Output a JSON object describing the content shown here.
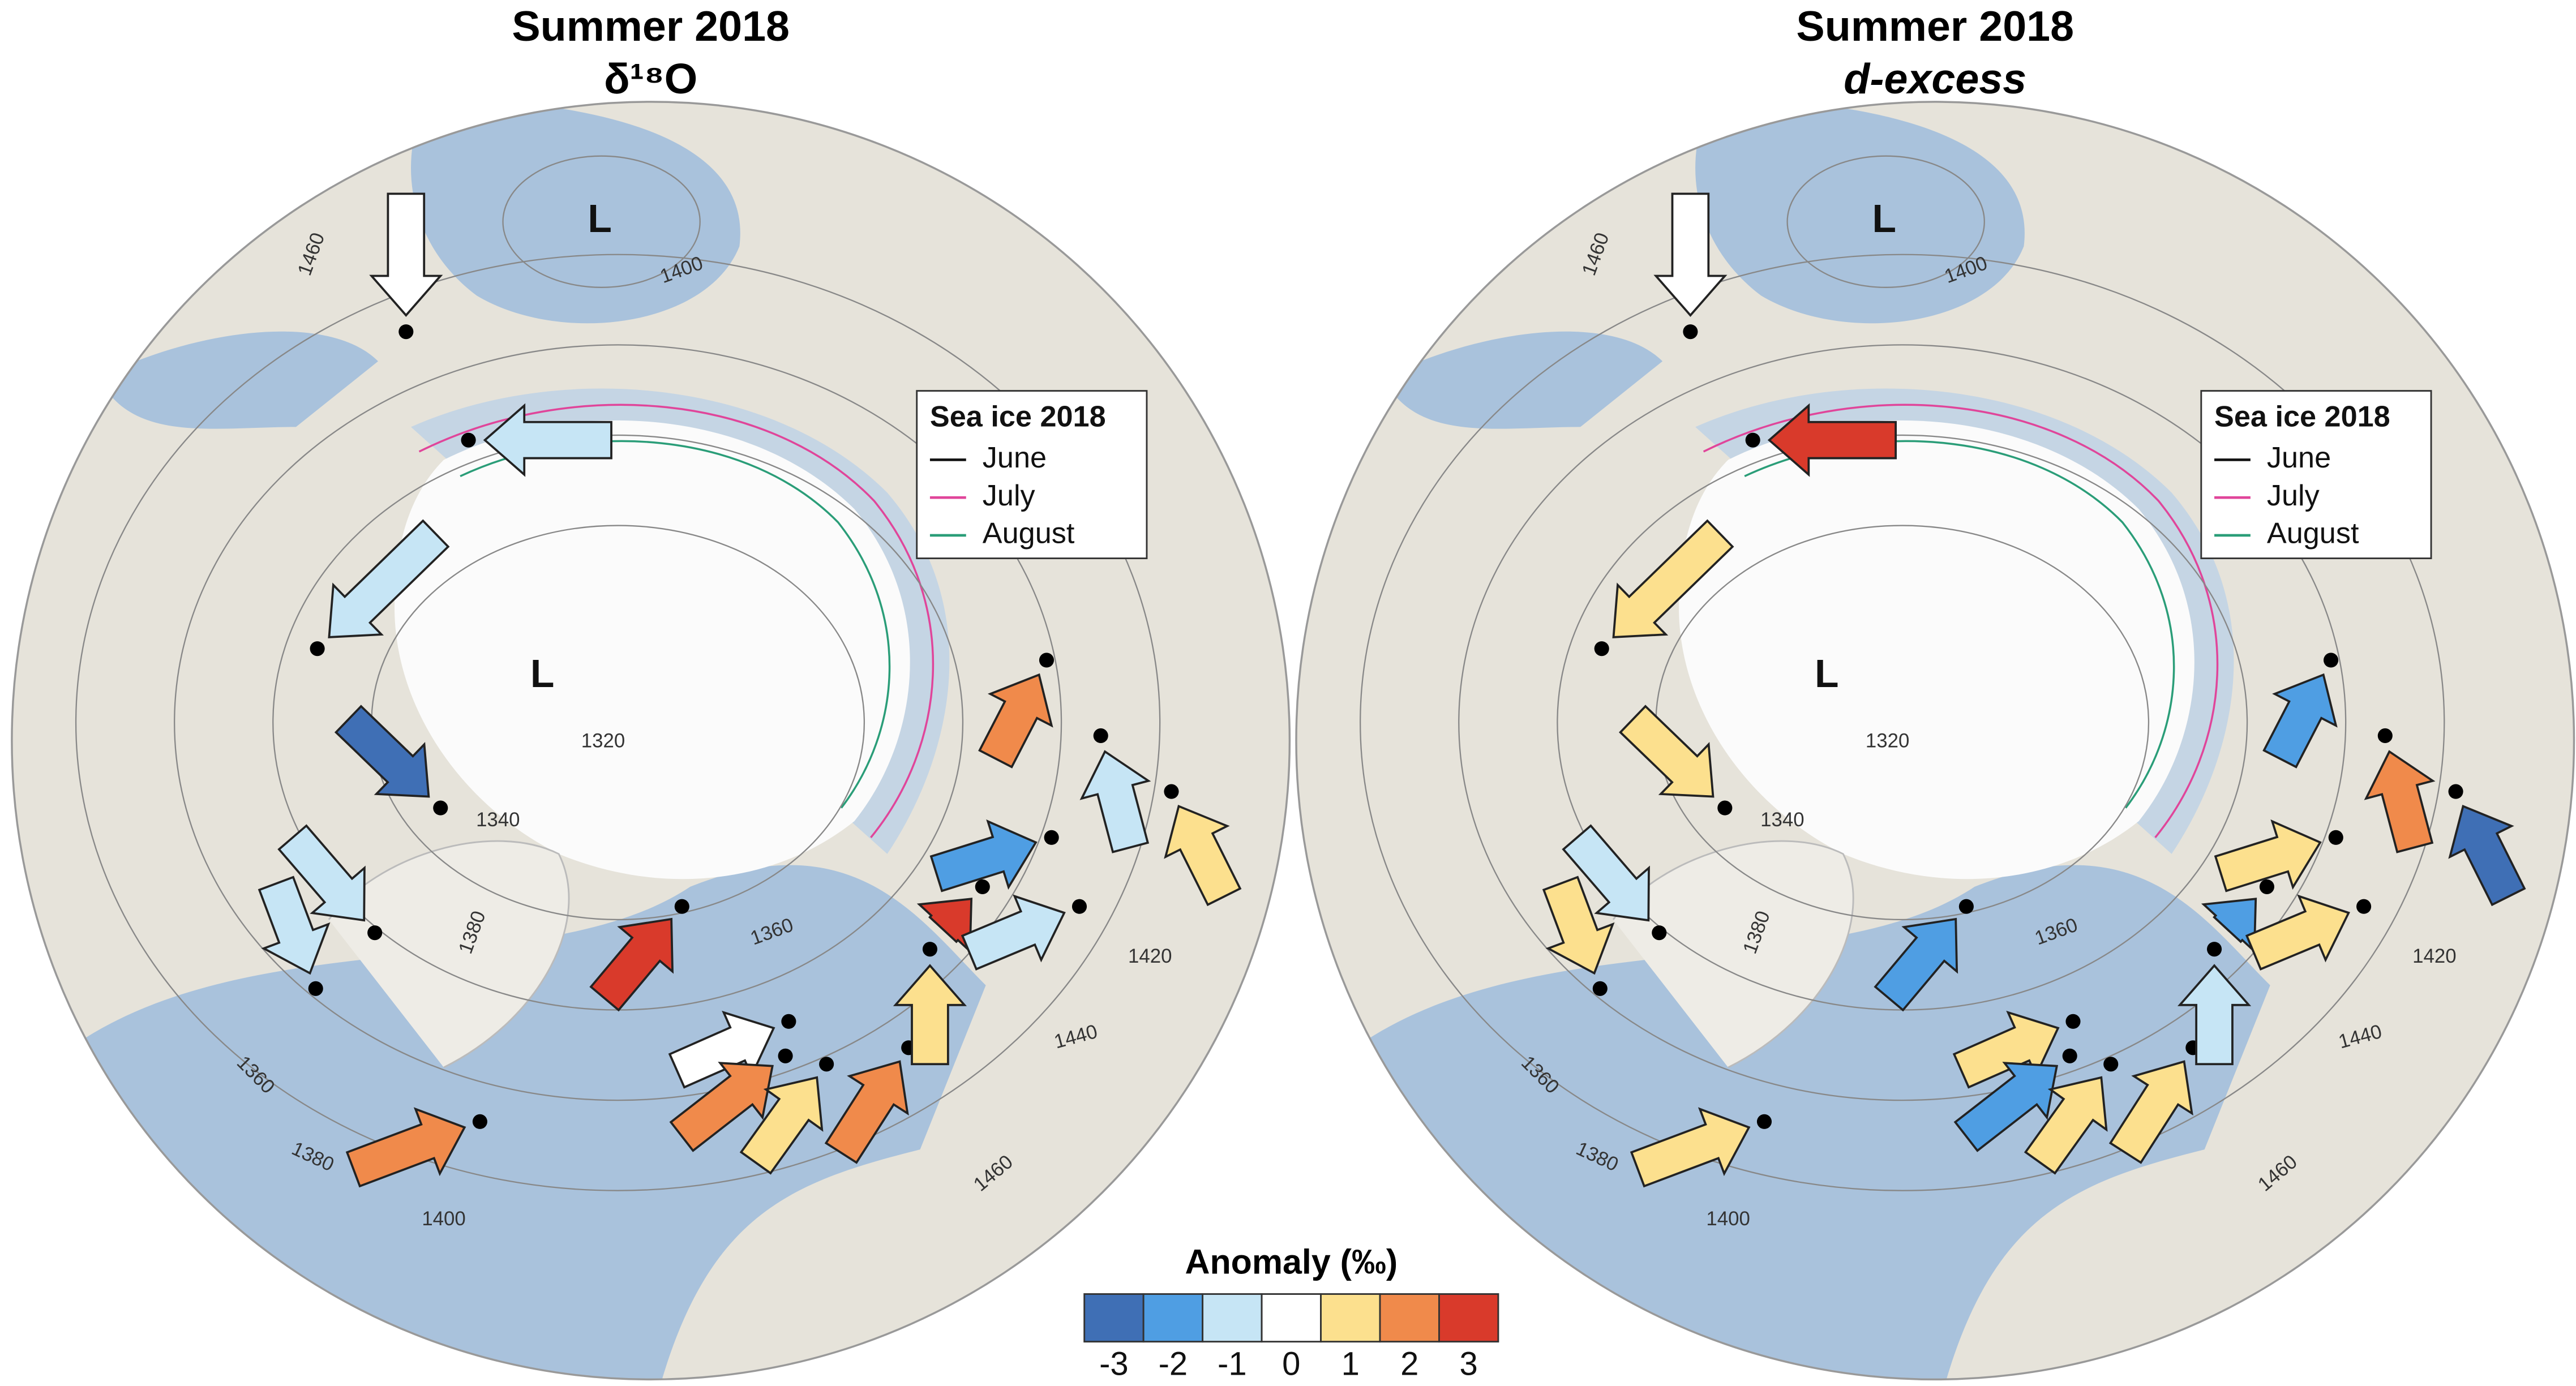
{
  "maps": [
    {
      "title": "Summer 2018",
      "subtitle": "δ¹⁸O",
      "subtitle_italic": false,
      "lows": [
        "L",
        "L"
      ],
      "contour_labels": [
        1460,
        1400,
        1320,
        1340,
        1380,
        1360,
        1420,
        1440,
        1460,
        1360,
        1380,
        1400
      ],
      "legend": {
        "title": "Sea ice 2018",
        "items": [
          {
            "label": "June",
            "color": "#111111"
          },
          {
            "label": "July",
            "color": "#e0459a"
          },
          {
            "label": "August",
            "color": "#2a9d78"
          }
        ]
      }
    },
    {
      "title": "Summer 2018",
      "subtitle": "d-excess",
      "subtitle_italic": true,
      "lows": [
        "L",
        "L"
      ],
      "contour_labels": [
        1460,
        1400,
        1320,
        1340,
        1380,
        1360,
        1420,
        1440,
        1460,
        1360,
        1380,
        1400
      ],
      "legend": {
        "title": "Sea ice 2018",
        "items": [
          {
            "label": "June",
            "color": "#111111"
          },
          {
            "label": "July",
            "color": "#e0459a"
          },
          {
            "label": "August",
            "color": "#2a9d78"
          }
        ]
      }
    }
  ],
  "colorbar": {
    "title": "Anomaly (‰)",
    "ticks": [
      -3,
      -2,
      -1,
      0,
      1,
      2,
      3
    ],
    "colors": [
      "#3f6fb5",
      "#4f9ee3",
      "#c6e5f5",
      "#ffffff",
      "#fce08e",
      "#f08a4b",
      "#d93a2b"
    ]
  }
}
